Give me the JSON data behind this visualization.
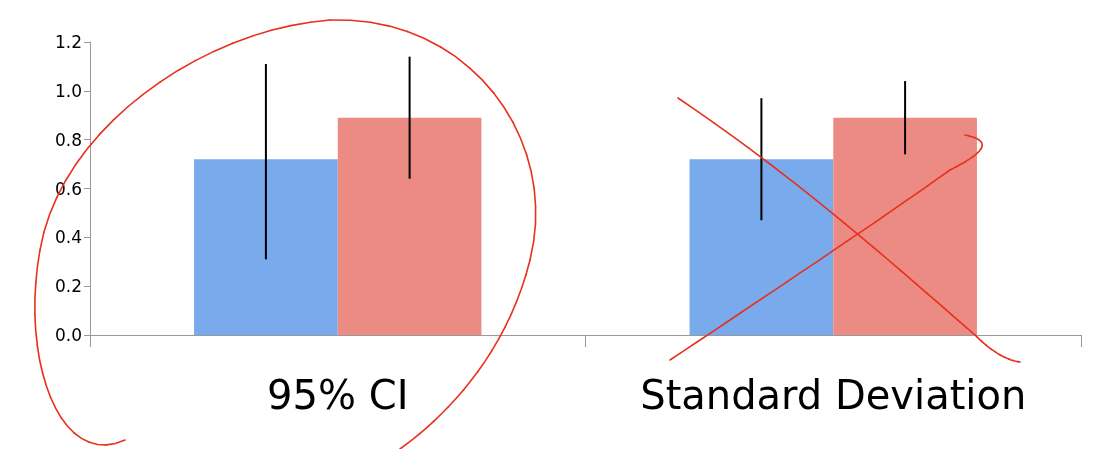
{
  "chart_data": {
    "type": "bar",
    "categories": [
      "95% CI",
      "Standard Deviation"
    ],
    "series": [
      {
        "color": "#79aaec",
        "values": [
          0.72,
          0.72
        ],
        "errors": [
          [
            0.31,
            1.11
          ],
          [
            0.47,
            0.97
          ]
        ]
      },
      {
        "color": "#ec8a84",
        "values": [
          0.89,
          0.89
        ],
        "errors": [
          [
            0.64,
            1.14
          ],
          [
            0.74,
            1.04
          ]
        ]
      }
    ],
    "ylim": [
      0,
      1.2
    ],
    "yticks": [
      {
        "value": 0,
        "label": "0.0"
      },
      {
        "value": 0.2,
        "label": "0.2"
      },
      {
        "value": 0.4,
        "label": "0.4"
      },
      {
        "value": 0.6,
        "label": "0.6"
      },
      {
        "value": 0.8,
        "label": "0.8"
      },
      {
        "value": 1,
        "label": "1.0"
      },
      {
        "value": 1.2,
        "label": "1.2"
      }
    ],
    "grid": false
  }
}
